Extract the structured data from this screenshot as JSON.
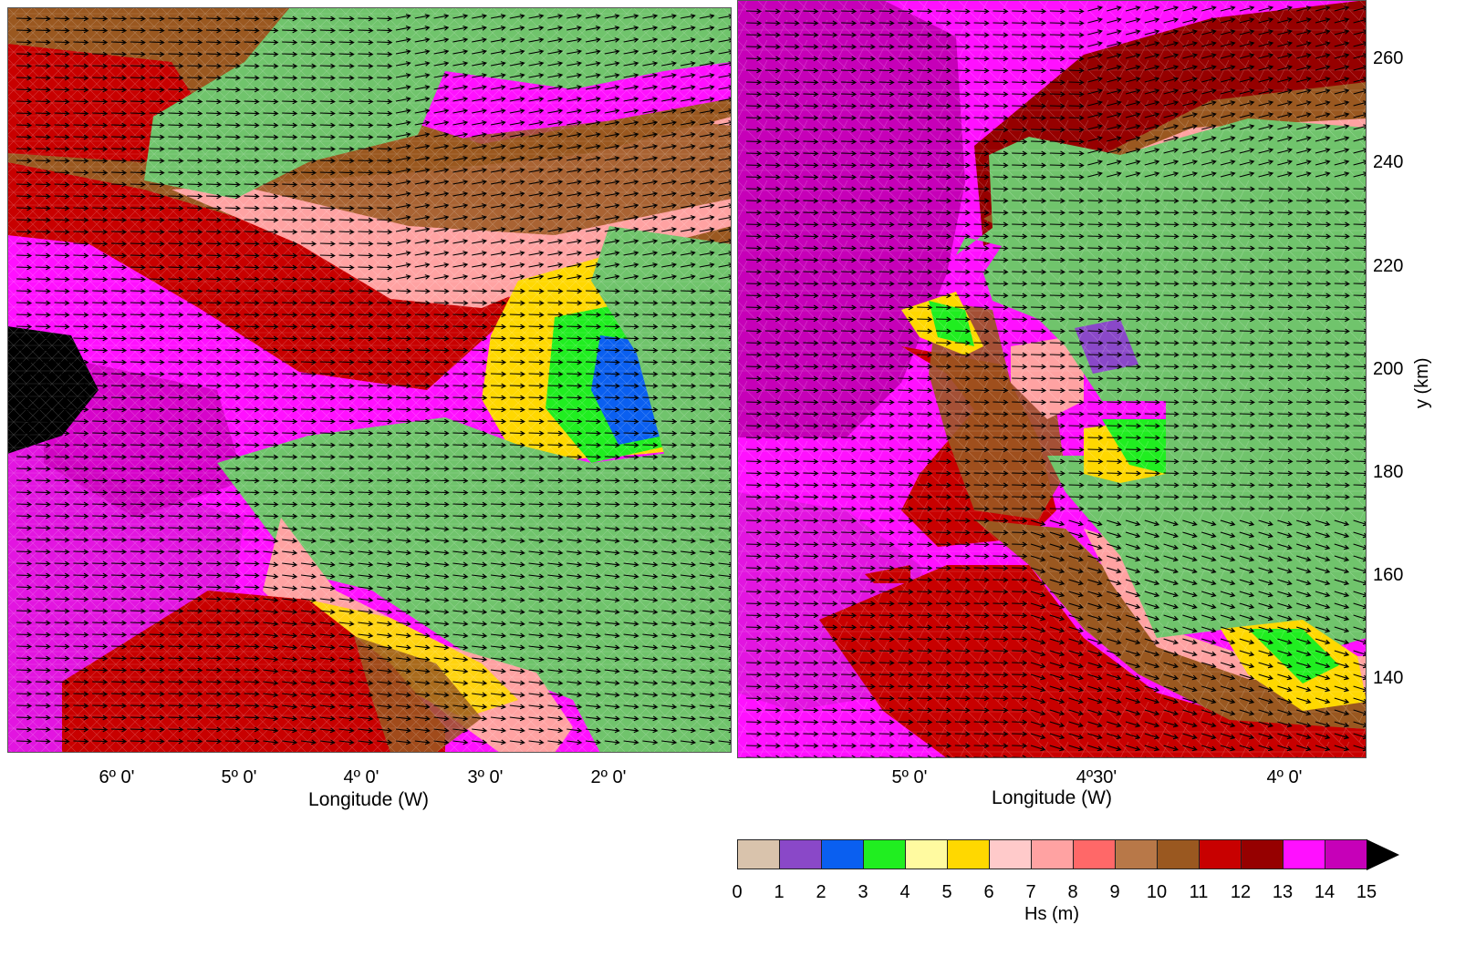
{
  "left_panel": {
    "x_ticks": [
      "6º 0'",
      "5º 0'",
      "4º 0'",
      "3º 0'",
      "2º 0'"
    ],
    "x_title": "Longitude (W)"
  },
  "right_panel": {
    "x_ticks": [
      "5º 0'",
      "4º30'",
      "4º 0'"
    ],
    "x_title": "Longitude (W)",
    "y_ticks": [
      "260",
      "240",
      "220",
      "200",
      "180",
      "160",
      "140"
    ],
    "y_title": "y (km)"
  },
  "colorbar": {
    "title": "Hs (m)",
    "labels": [
      "0",
      "1",
      "2",
      "3",
      "4",
      "5",
      "6",
      "7",
      "8",
      "9",
      "10",
      "11",
      "12",
      "13",
      "14",
      "15"
    ],
    "colors": [
      "#d9c3ac",
      "#8a48c8",
      "#0a5ff0",
      "#20ee20",
      "#fffaa0",
      "#ffd800",
      "#ffcaca",
      "#ffa2a2",
      "#ff6868",
      "#b87848",
      "#9a5820",
      "#c80000",
      "#960000",
      "#ff10ff",
      "#c600b8"
    ],
    "overflow_color": "#000000"
  },
  "colors": {
    "land": "#70c46c",
    "sea_deep": "#ff10ff",
    "sea_alt": "#c000b0"
  }
}
